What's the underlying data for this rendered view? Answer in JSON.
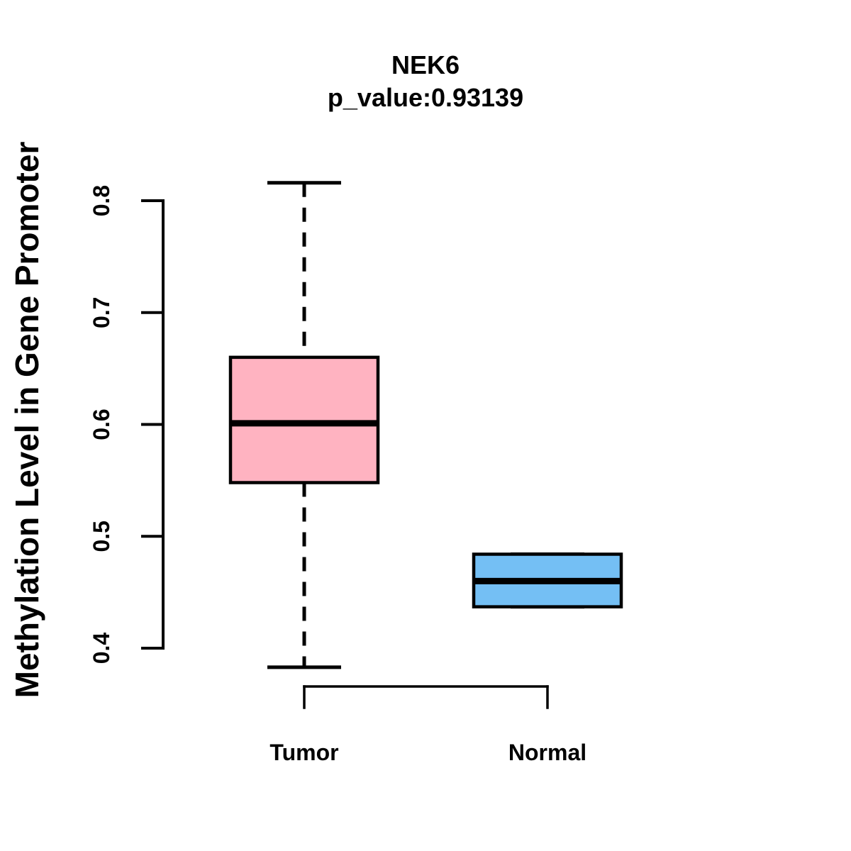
{
  "title": "NEK6",
  "subtitle": "p_value:0.93139",
  "ylabel": "Methylation Level in Gene Promoter",
  "chart_data": {
    "type": "boxplot",
    "title": "NEK6",
    "subtitle": "p_value:0.93139",
    "ylabel": "Methylation Level in Gene Promoter",
    "xlabel": "",
    "categories": [
      "Tumor",
      "Normal"
    ],
    "series": [
      {
        "name": "Tumor",
        "whisker_low": 0.383,
        "q1": 0.548,
        "median": 0.601,
        "q3": 0.66,
        "whisker_high": 0.816,
        "fill_color": "#FFB3C1"
      },
      {
        "name": "Normal",
        "whisker_low": 0.437,
        "q1": 0.437,
        "median": 0.46,
        "q3": 0.484,
        "whisker_high": 0.484,
        "fill_color": "#74BFF4"
      }
    ],
    "ylim": [
      0.4,
      0.8
    ],
    "yticks": [
      0.4,
      0.5,
      0.6,
      0.7,
      0.8
    ],
    "ytick_labels": [
      "0.4",
      "0.5",
      "0.6",
      "0.7",
      "0.8"
    ],
    "outliers": [],
    "grid": false,
    "legend_position": "none",
    "box_border_color": "#000000",
    "median_color": "#000000",
    "background_color": "#FFFFFF",
    "text_color": "#000000"
  }
}
